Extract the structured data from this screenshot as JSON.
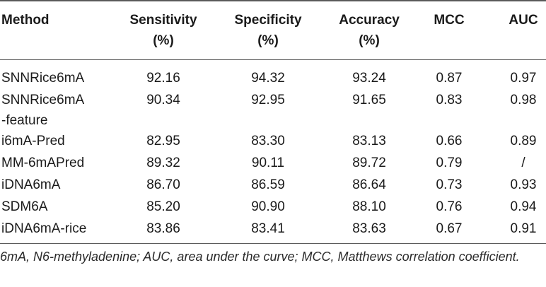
{
  "table": {
    "headers": [
      {
        "line1": "Method",
        "line2": ""
      },
      {
        "line1": "Sensitivity",
        "line2": "(%)"
      },
      {
        "line1": "Specificity",
        "line2": "(%)"
      },
      {
        "line1": "Accuracy",
        "line2": "(%)"
      },
      {
        "line1": "MCC",
        "line2": ""
      },
      {
        "line1": "AUC",
        "line2": ""
      }
    ],
    "rows": [
      {
        "method": "SNNRice6mA",
        "method2": "",
        "sens": "92.16",
        "spec": "94.32",
        "acc": "93.24",
        "mcc": "0.87",
        "auc": "0.97"
      },
      {
        "method": "SNNRice6mA",
        "method2": "-feature",
        "sens": "90.34",
        "spec": "92.95",
        "acc": "91.65",
        "mcc": "0.83",
        "auc": "0.98"
      },
      {
        "method": "i6mA-Pred",
        "method2": "",
        "sens": "82.95",
        "spec": "83.30",
        "acc": "83.13",
        "mcc": "0.66",
        "auc": "0.89"
      },
      {
        "method": "MM-6mAPred",
        "method2": "",
        "sens": "89.32",
        "spec": "90.11",
        "acc": "89.72",
        "mcc": "0.79",
        "auc": "/"
      },
      {
        "method": "iDNA6mA",
        "method2": "",
        "sens": "86.70",
        "spec": "86.59",
        "acc": "86.64",
        "mcc": "0.73",
        "auc": "0.93"
      },
      {
        "method": "SDM6A",
        "method2": "",
        "sens": "85.20",
        "spec": "90.90",
        "acc": "88.10",
        "mcc": "0.76",
        "auc": "0.94"
      },
      {
        "method": "iDNA6mA-rice",
        "method2": "",
        "sens": "83.86",
        "spec": "83.41",
        "acc": "83.63",
        "mcc": "0.67",
        "auc": "0.91"
      }
    ]
  },
  "footnote": "6mA, N6-methyladenine; AUC, area under the curve; MCC, Matthews correlation coefficient."
}
